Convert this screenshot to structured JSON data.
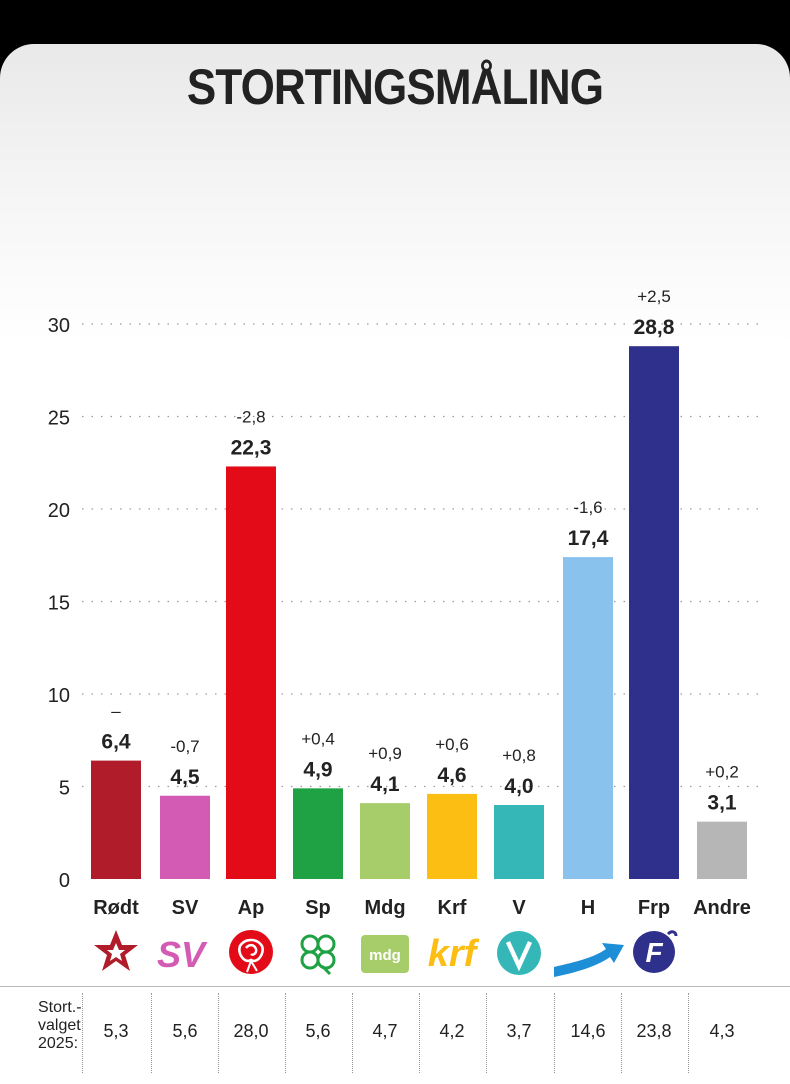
{
  "title": "STORTINGSMÅLING",
  "colors": {
    "Rødt": "#b01c2a",
    "SV": "#d45bb3",
    "Ap": "#e30b17",
    "Sp": "#1fa244",
    "Mdg": "#a7cd6a",
    "Krf": "#fdbe14",
    "V": "#35b7b8",
    "H": "#88c2ed",
    "Frp": "#2f2f8c",
    "Andre": "#b6b6b6"
  },
  "chart_data": {
    "type": "bar",
    "title": "STORTINGSMÅLING",
    "categories": [
      "Rødt",
      "SV",
      "Ap",
      "Sp",
      "Mdg",
      "Krf",
      "V",
      "H",
      "Frp",
      "Andre"
    ],
    "values": [
      6.4,
      4.5,
      22.3,
      4.9,
      4.1,
      4.6,
      4.0,
      17.4,
      28.8,
      3.1
    ],
    "value_labels": [
      "6,4",
      "4,5",
      "22,3",
      "4,9",
      "4,1",
      "4,6",
      "4,0",
      "17,4",
      "28,8",
      "3,1"
    ],
    "change_labels": [
      "–",
      "-0,7",
      "-2,8",
      "+0,4",
      "+0,9",
      "+0,6",
      "+0,8",
      "-1,6",
      "+2,5",
      "+0,2"
    ],
    "yticks": [
      0,
      5,
      10,
      15,
      20,
      25,
      30
    ],
    "ylim": [
      0,
      30
    ],
    "grid": true,
    "xlabel": "",
    "ylabel": ""
  },
  "logos": {
    "SV": "SV",
    "Mdg": "mdg",
    "Krf": "krf",
    "V": "V",
    "Frp": "F"
  },
  "logo_icons": [
    "star-icon",
    "sv-logo-icon",
    "rose-icon",
    "clover-icon",
    "mdg-logo-icon",
    "krf-logo-icon",
    "v-logo-icon",
    "h-arrow-icon",
    "frp-logo-icon"
  ],
  "election": {
    "label_lines": [
      "Stort.-",
      "valget",
      "2025:"
    ],
    "values": [
      "5,3",
      "5,6",
      "28,0",
      "5,6",
      "4,7",
      "4,2",
      "3,7",
      "14,6",
      "23,8",
      "4,3"
    ]
  }
}
